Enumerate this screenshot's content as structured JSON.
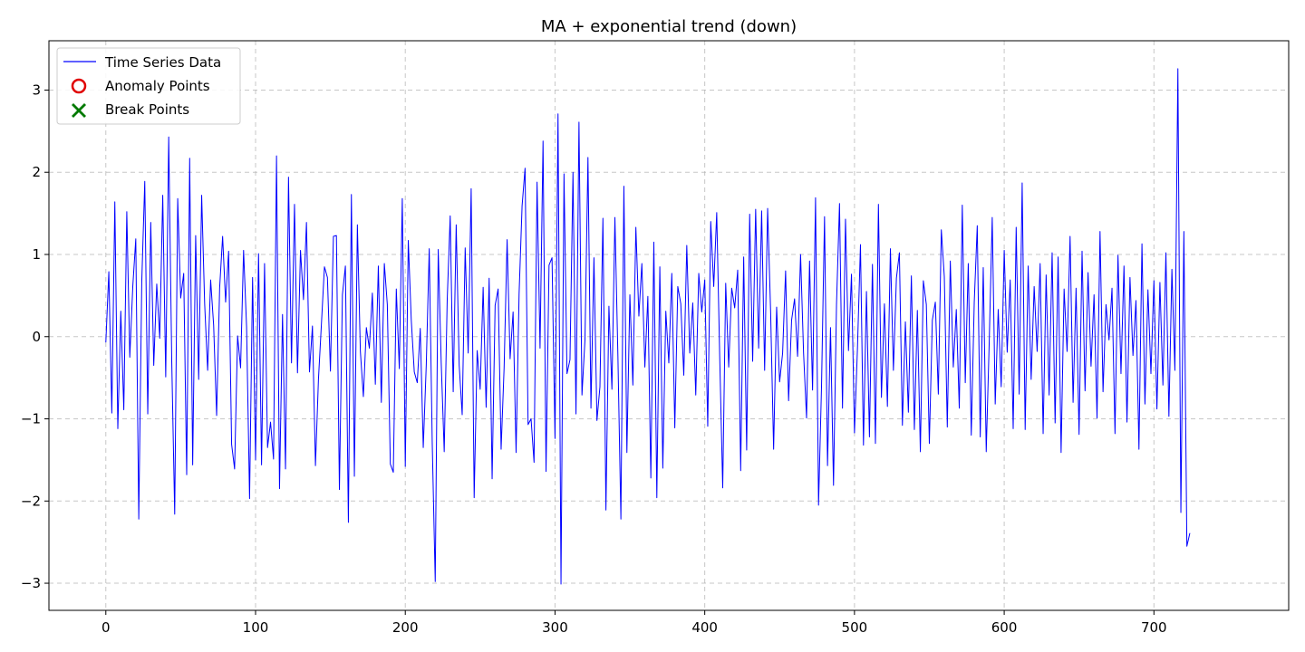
{
  "chart_data": {
    "type": "line",
    "title": "MA + exponential trend (down)",
    "xlabel": "",
    "ylabel": "",
    "xlim": [
      -38,
      790
    ],
    "ylim": [
      -3.33,
      3.6
    ],
    "xticks": [
      0,
      100,
      200,
      300,
      400,
      500,
      600,
      700
    ],
    "yticks": [
      -3,
      -2,
      -1,
      0,
      1,
      2,
      3
    ],
    "grid": true,
    "legend_placement": "top-left",
    "legend": [
      "Time Series Data",
      "Anomaly Points",
      "Break Points"
    ],
    "colors": {
      "series": "#0000ff",
      "anomaly": "#e00000",
      "break": "#007a00"
    },
    "series": [
      {
        "name": "Time Series Data",
        "x_start": 0,
        "x_step": 2,
        "values": [
          -0.07,
          0.79,
          -0.93,
          1.64,
          -1.12,
          0.31,
          -0.89,
          1.52,
          -0.25,
          0.61,
          1.19,
          -2.22,
          0.67,
          1.89,
          -0.94,
          1.39,
          -0.35,
          0.64,
          -0.02,
          1.72,
          -0.49,
          2.43,
          -0.28,
          -2.16,
          1.68,
          0.47,
          0.77,
          -1.68,
          2.17,
          -1.56,
          1.23,
          -0.52,
          1.72,
          0.4,
          -0.41,
          0.69,
          0.14,
          -0.96,
          0.59,
          1.22,
          0.42,
          1.04,
          -1.31,
          -1.61,
          0.01,
          -0.38,
          1.05,
          0.12,
          -1.97,
          0.72,
          -1.5,
          1.01,
          -1.56,
          0.89,
          -1.35,
          -1.04,
          -1.49,
          2.2,
          -1.85,
          0.27,
          -1.61,
          1.94,
          -0.32,
          1.61,
          -0.44,
          1.05,
          0.45,
          1.39,
          -0.43,
          0.13,
          -1.57,
          -0.52,
          0.16,
          0.85,
          0.72,
          -0.42,
          1.22,
          1.23,
          -1.86,
          0.51,
          0.86,
          -2.26,
          1.73,
          -1.7,
          1.36,
          -0.18,
          -0.73,
          0.11,
          -0.14,
          0.53,
          -0.58,
          0.86,
          -0.8,
          0.89,
          0.39,
          -1.55,
          -1.65,
          0.58,
          -0.39,
          1.68,
          -1.58,
          1.17,
          0.2,
          -0.43,
          -0.56,
          0.1,
          -1.35,
          -0.35,
          1.07,
          -1.3,
          -2.98,
          1.06,
          -0.32,
          -1.4,
          0.45,
          1.47,
          -0.67,
          1.36,
          -0.35,
          -0.95,
          1.08,
          -0.2,
          1.8,
          -1.96,
          -0.17,
          -0.64,
          0.6,
          -0.86,
          0.71,
          -1.73,
          0.38,
          0.58,
          -1.37,
          -0.38,
          1.18,
          -0.27,
          0.3,
          -1.41,
          0.52,
          1.59,
          2.05,
          -1.07,
          -1.0,
          -1.53,
          1.88,
          -0.14,
          2.38,
          -1.64,
          0.87,
          0.96,
          -1.24,
          2.71,
          -3.01,
          1.98,
          -0.45,
          -0.28,
          2.0,
          -0.94,
          2.61,
          -0.71,
          -0.04,
          2.18,
          -0.87,
          0.96,
          -1.02,
          -0.61,
          1.44,
          -2.11,
          0.37,
          -0.64,
          1.45,
          -0.24,
          -2.22,
          1.83,
          -1.41,
          0.51,
          -0.59,
          1.33,
          0.25,
          0.89,
          -0.37,
          0.49,
          -1.72,
          1.15,
          -1.96,
          0.85,
          -1.6,
          0.31,
          -0.32,
          0.77,
          -1.11,
          0.61,
          0.4,
          -0.47,
          1.11,
          -0.2,
          0.41,
          -0.71,
          0.77,
          0.3,
          0.69,
          -1.09,
          1.4,
          0.61,
          1.51,
          -0.25,
          -1.84,
          0.65,
          -0.37,
          0.59,
          0.35,
          0.81,
          -1.63,
          0.97,
          -1.38,
          1.49,
          -0.3,
          1.55,
          -0.14,
          1.53,
          -0.41,
          1.56,
          0.3,
          -1.37,
          0.36,
          -0.55,
          -0.2,
          0.8,
          -0.78,
          0.2,
          0.46,
          -0.24,
          1.0,
          -0.2,
          -0.99,
          0.92,
          -0.65,
          1.69,
          -2.05,
          -0.6,
          1.46,
          -1.57,
          0.11,
          -1.81,
          0.39,
          1.62,
          -0.87,
          1.43,
          -0.17,
          0.76,
          -1.17,
          -0.14,
          1.12,
          -1.32,
          0.55,
          -1.22,
          0.88,
          -1.3,
          1.61,
          -0.74,
          0.4,
          -0.85,
          1.07,
          -0.41,
          0.71,
          1.02,
          -1.08,
          0.18,
          -0.92,
          0.74,
          -1.13,
          0.32,
          -1.4,
          0.68,
          0.39,
          -1.3,
          0.2,
          0.42,
          -0.7,
          1.3,
          0.73,
          -1.1,
          0.92,
          -0.37,
          0.33,
          -0.87,
          1.6,
          -0.56,
          0.89,
          -1.2,
          0.42,
          1.35,
          -1.22,
          0.84,
          -1.4,
          -0.06,
          1.45,
          -0.82,
          0.33,
          -0.61,
          1.05,
          -0.19,
          0.69,
          -1.12,
          1.33,
          -0.7,
          1.87,
          -1.13,
          0.86,
          -0.52,
          0.61,
          -0.18,
          0.89,
          -1.18,
          0.75,
          -0.71,
          1.02,
          -1.05,
          0.97,
          -1.41,
          0.58,
          -0.18,
          1.22,
          -0.8,
          0.59,
          -1.19,
          1.04,
          -0.66,
          0.78,
          -0.36,
          0.51,
          -0.99,
          1.28,
          -0.67,
          0.39,
          -0.04,
          0.59,
          -1.18,
          0.99,
          -0.45,
          0.86,
          -1.04,
          0.72,
          -0.23,
          0.44,
          -1.37,
          1.13,
          -0.82,
          0.57,
          -0.45,
          0.68,
          -0.88,
          0.66,
          -0.59,
          1.02,
          -0.97,
          0.82,
          -0.41,
          3.26,
          -2.14,
          1.28,
          -2.55,
          -2.39
        ]
      }
    ]
  }
}
